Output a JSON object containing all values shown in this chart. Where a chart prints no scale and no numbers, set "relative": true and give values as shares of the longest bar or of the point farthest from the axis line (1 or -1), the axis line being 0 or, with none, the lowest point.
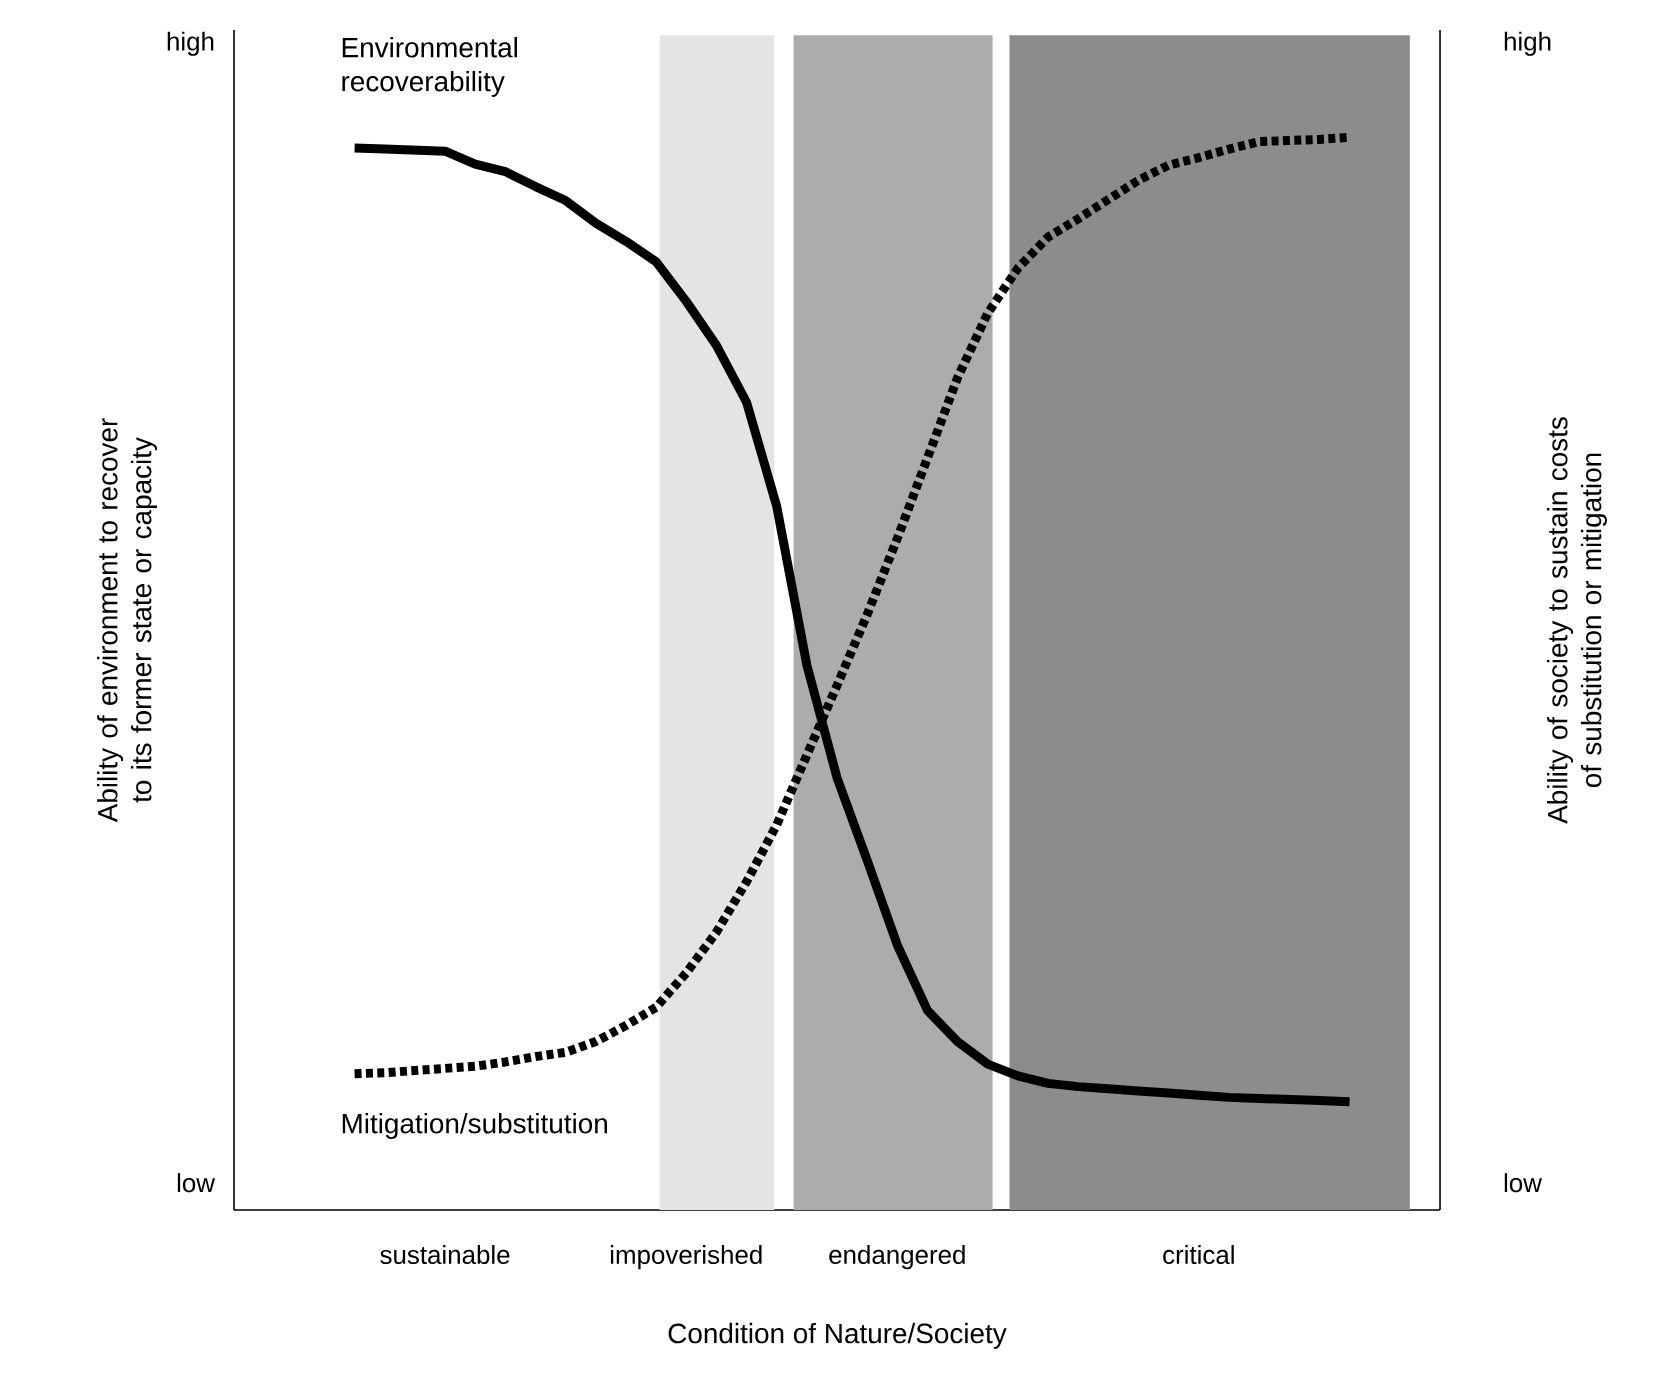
{
  "chart_data": {
    "type": "line",
    "relative": true,
    "xlabel": "Condition of Nature/Society",
    "ylabel": "Ability of environment to recover to its former state or capacity",
    "y2label": "Ability of society to sustain costs of substitution or mitigation",
    "categories": [
      null,
      null,
      null,
      null,
      null,
      null,
      null,
      "sustainable",
      null,
      null,
      null,
      null,
      null,
      null,
      null,
      "impoverished",
      null,
      null,
      null,
      null,
      null,
      null,
      "endangered",
      null,
      null,
      null,
      null,
      null,
      null,
      null,
      null,
      null,
      "critical",
      null,
      null,
      null,
      null,
      null,
      null,
      null,
      null
    ],
    "annotations": [
      "high",
      "low",
      "high",
      "low"
    ],
    "series": [
      {
        "name": "Environmental recoverability",
        "color": "#000000",
        "line_style": "solid",
        "values": [
          null,
          null,
          null,
          null,
          0.99,
          0.989,
          0.988,
          0.987,
          0.975,
          0.968,
          0.954,
          0.941,
          0.92,
          0.903,
          0.884,
          0.847,
          0.806,
          0.753,
          0.656,
          0.508,
          0.403,
          0.326,
          0.247,
          0.186,
          0.157,
          0.136,
          0.125,
          0.118,
          0.115,
          0.113,
          0.111,
          0.109,
          0.107,
          0.105,
          0.104,
          0.103,
          0.102,
          0.101,
          null,
          null,
          null
        ]
      },
      {
        "name": "Mitigation/substitution",
        "color": "#000000",
        "line_style": "dotted",
        "values": [
          null,
          null,
          null,
          null,
          0.127,
          0.128,
          0.13,
          0.132,
          0.134,
          0.138,
          0.143,
          0.147,
          0.157,
          0.172,
          0.189,
          0.221,
          0.259,
          0.306,
          0.359,
          0.424,
          0.489,
          0.555,
          0.626,
          0.701,
          0.776,
          0.836,
          0.878,
          0.907,
          0.924,
          0.942,
          0.96,
          0.974,
          0.981,
          0.989,
          0.996,
          0.997,
          0.998,
          1.0,
          null,
          null,
          null
        ]
      }
    ]
  }
}
